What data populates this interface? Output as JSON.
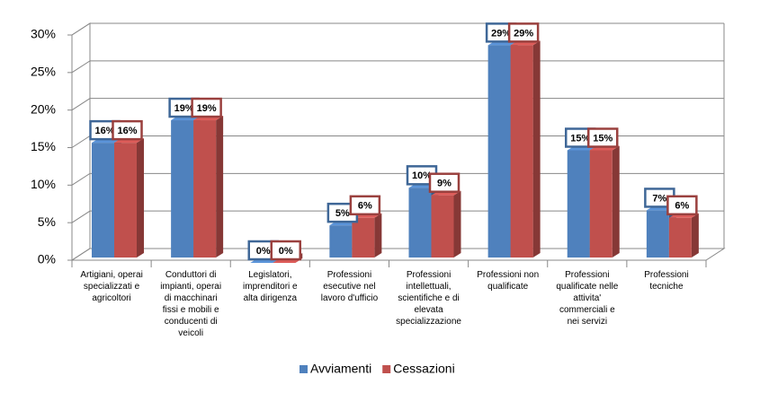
{
  "chart_data": {
    "type": "bar3d",
    "categories": [
      "Artigiani, operai\nspecializzati e\nagricoltori",
      "Conduttori di\nimpianti, operai\ndi macchinari\nfissi e mobili e\nconducenti di\nveicoli",
      "Legislatori,\nimprenditori e\nalta dirigenza",
      "Professioni\nesecutive nel\nlavoro d'ufficio",
      "Professioni\nintellettuali,\nscientifiche e di\nelevata\nspecializzazione",
      "Professioni non\nqualificate",
      "Professioni\nqualificate nelle\nattivita'\ncommerciali e\nnei servizi",
      "Professioni\ntecniche"
    ],
    "series": [
      {
        "name": "Avviamenti",
        "color": "#4f81bd",
        "values": [
          16,
          19,
          0,
          5,
          10,
          29,
          15,
          7
        ],
        "value_labels": [
          "16%",
          "19%",
          "0%",
          "5%",
          "10%",
          "29%",
          "15%",
          "7%"
        ]
      },
      {
        "name": "Cessazioni",
        "color": "#c0504d",
        "values": [
          16,
          19,
          0,
          6,
          9,
          29,
          15,
          6
        ],
        "value_labels": [
          "16%",
          "19%",
          "0%",
          "6%",
          "9%",
          "29%",
          "15%",
          "6%"
        ]
      }
    ],
    "ylim": [
      0,
      30
    ],
    "yticks": [
      {
        "value": 0,
        "label": "0%"
      },
      {
        "value": 5,
        "label": "5%"
      },
      {
        "value": 10,
        "label": "10%"
      },
      {
        "value": 15,
        "label": "15%"
      },
      {
        "value": 20,
        "label": "20%"
      },
      {
        "value": 25,
        "label": "25%"
      },
      {
        "value": 30,
        "label": "30%"
      }
    ],
    "grid": true,
    "legend": "bottom"
  }
}
